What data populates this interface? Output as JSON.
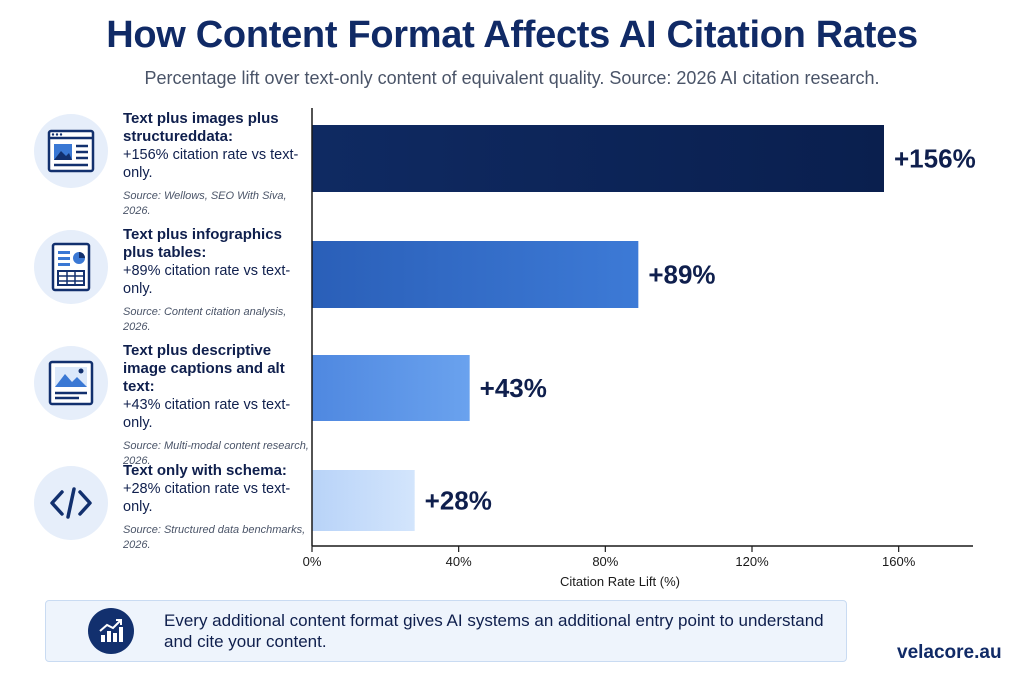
{
  "title": "How Content Format Affects AI Citation Rates",
  "subtitle": "Percentage lift over text-only content of equivalent quality. Source: 2026 AI citation research.",
  "rows": [
    {
      "icon": "webpage-layout-icon",
      "heading": "Text plus images plus structureddata:",
      "stat": "+156% citation rate vs text-only.",
      "source": "Source: Wellows, SEO With Siva, 2026."
    },
    {
      "icon": "infographic-table-icon",
      "heading": "Text plus infographics plus tables:",
      "stat": "+89% citation rate vs text-only.",
      "source": "Source: Content citation analysis, 2026."
    },
    {
      "icon": "image-caption-icon",
      "heading": "Text plus descriptive image captions and alt text:",
      "stat": "+43% citation rate vs text-only.",
      "source": "Source: Multi-modal content research, 2026."
    },
    {
      "icon": "code-brackets-icon",
      "heading": "Text only with schema:",
      "stat": "+28% citation rate vs text-only.",
      "source": "Source: Structured data benchmarks, 2026."
    }
  ],
  "chart_data": {
    "type": "bar",
    "orientation": "horizontal",
    "categories": [
      "Text plus images plus structured data",
      "Text plus infographics plus tables",
      "Text plus descriptive image captions and alt text",
      "Text only with schema"
    ],
    "values": [
      156,
      89,
      43,
      28
    ],
    "data_labels": [
      "+156%",
      "+89%",
      "+43%",
      "+28%"
    ],
    "colors": [
      "#0d2456",
      "#3170cc",
      "#5b95e8",
      "#c6ddfb"
    ],
    "xlabel": "Citation Rate Lift (%)",
    "xlim": [
      0,
      180
    ],
    "ticks": [
      0,
      40,
      80,
      120,
      160
    ],
    "tick_labels": [
      "0%",
      "40%",
      "80%",
      "120%",
      "160%"
    ],
    "grid": false
  },
  "callout": {
    "icon": "trending-up-chart-icon",
    "text": "Every additional content format gives AI systems an additional entry point to understand and cite your content."
  },
  "brand": "velacore.au"
}
